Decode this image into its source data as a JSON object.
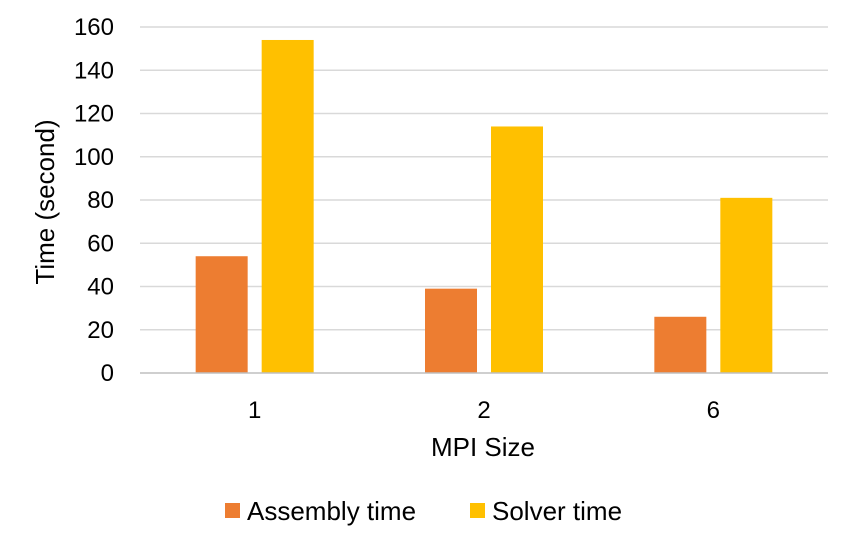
{
  "chart_data": {
    "type": "bar",
    "categories": [
      "1",
      "2",
      "6"
    ],
    "series": [
      {
        "name": "Assembly time",
        "values": [
          54,
          39,
          26
        ],
        "color": "#ED7D31"
      },
      {
        "name": "Solver time",
        "values": [
          154,
          114,
          81
        ],
        "color": "#FFC000"
      }
    ],
    "xlabel": "MPI Size",
    "ylabel": "Time (second)",
    "ylim": [
      0,
      160
    ],
    "yticks": [
      0,
      20,
      40,
      60,
      80,
      100,
      120,
      140,
      160
    ],
    "grid": true,
    "legend_position": "bottom",
    "gridline_color": "#D9D9D9"
  }
}
